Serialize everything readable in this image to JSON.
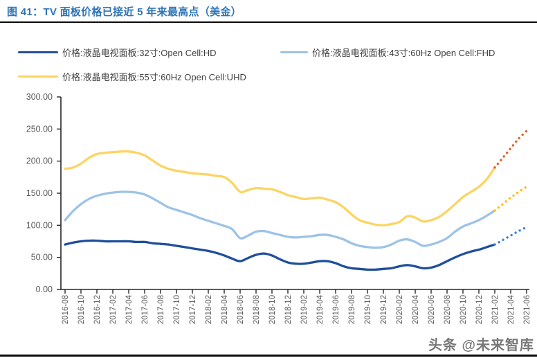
{
  "header": {
    "title": "图 41：TV 面板价格已接近 5 年来最高点（美金）"
  },
  "legend": [
    {
      "label": "价格:液晶电视面板:32寸:Open Cell:HD",
      "color": "#1F4E9C"
    },
    {
      "label": "价格:液晶电视面板:43寸:60Hz Open Cell:FHD",
      "color": "#9DC3E6"
    },
    {
      "label": "价格:液晶电视面板:55寸:60Hz Open Cell:UHD",
      "color": "#FCD462"
    }
  ],
  "watermark": "头条 @未来智库",
  "chart_data": {
    "type": "line",
    "title": "图 41：TV 面板价格已接近 5 年来最高点（美金）",
    "ylabel": "",
    "xlabel": "",
    "ylim": [
      0,
      300
    ],
    "ytick_step": 50,
    "ytick_values": [
      0,
      50,
      100,
      150,
      200,
      250,
      300
    ],
    "ytick_decimals": 2,
    "xtick_every": 2,
    "grid": false,
    "legend_position": "top",
    "axis_color": "#262626",
    "tick_label_color": "#595959",
    "x": [
      "2016-08",
      "2016-09",
      "2016-10",
      "2016-11",
      "2016-12",
      "2017-01",
      "2017-02",
      "2017-03",
      "2017-04",
      "2017-05",
      "2017-06",
      "2017-07",
      "2017-08",
      "2017-09",
      "2017-10",
      "2017-11",
      "2017-12",
      "2018-01",
      "2018-02",
      "2018-03",
      "2018-04",
      "2018-05",
      "2018-06",
      "2018-07",
      "2018-08",
      "2018-09",
      "2018-10",
      "2018-11",
      "2018-12",
      "2019-01",
      "2019-02",
      "2019-03",
      "2019-04",
      "2019-05",
      "2019-06",
      "2019-07",
      "2019-08",
      "2019-09",
      "2019-10",
      "2019-11",
      "2019-12",
      "2020-01",
      "2020-02",
      "2020-03",
      "2020-04",
      "2020-05",
      "2020-06",
      "2020-07",
      "2020-08",
      "2020-09",
      "2020-10",
      "2020-11",
      "2020-12",
      "2021-01",
      "2021-02",
      "2021-03",
      "2021-04",
      "2021-05",
      "2021-06"
    ],
    "solid_points": 55,
    "series": [
      {
        "name": "价格:液晶电视面板:32寸:Open Cell:HD",
        "color": "#1F4E9C",
        "forecast_color": "#3E86D8",
        "values": [
          70,
          73,
          75,
          76,
          76,
          75,
          75,
          75,
          75,
          74,
          74,
          72,
          71,
          70,
          68,
          66,
          64,
          62,
          60,
          57,
          53,
          48,
          44,
          49,
          54,
          56,
          53,
          47,
          42,
          40,
          40,
          42,
          44,
          44,
          41,
          36,
          33,
          32,
          31,
          31,
          32,
          33,
          36,
          38,
          36,
          33,
          34,
          38,
          44,
          50,
          55,
          59,
          62,
          66,
          70,
          77,
          84,
          91,
          97
        ]
      },
      {
        "name": "价格:液晶电视面板:43寸:60Hz Open Cell:FHD",
        "color": "#9DC3E6",
        "forecast_color": "#FFC000",
        "values": [
          108,
          122,
          133,
          141,
          146,
          149,
          151,
          152,
          152,
          151,
          148,
          142,
          135,
          128,
          124,
          120,
          116,
          111,
          107,
          103,
          99,
          94,
          80,
          84,
          90,
          91,
          88,
          85,
          82,
          81,
          82,
          83,
          85,
          85,
          82,
          78,
          72,
          68,
          66,
          65,
          66,
          70,
          76,
          78,
          74,
          68,
          70,
          74,
          80,
          90,
          98,
          103,
          108,
          115,
          123,
          133,
          143,
          152,
          160
        ]
      },
      {
        "name": "价格:液晶电视面板:55寸:60Hz Open Cell:UHD",
        "color": "#FCD462",
        "forecast_color": "#E2622B",
        "values": [
          188,
          190,
          196,
          205,
          211,
          213,
          214,
          215,
          215,
          213,
          209,
          201,
          193,
          188,
          185,
          183,
          181,
          180,
          179,
          177,
          175,
          166,
          152,
          155,
          158,
          157,
          156,
          152,
          147,
          144,
          141,
          142,
          143,
          140,
          136,
          128,
          117,
          108,
          104,
          101,
          100,
          102,
          105,
          114,
          112,
          106,
          108,
          113,
          122,
          133,
          144,
          152,
          160,
          172,
          190,
          205,
          220,
          235,
          247
        ]
      }
    ]
  }
}
